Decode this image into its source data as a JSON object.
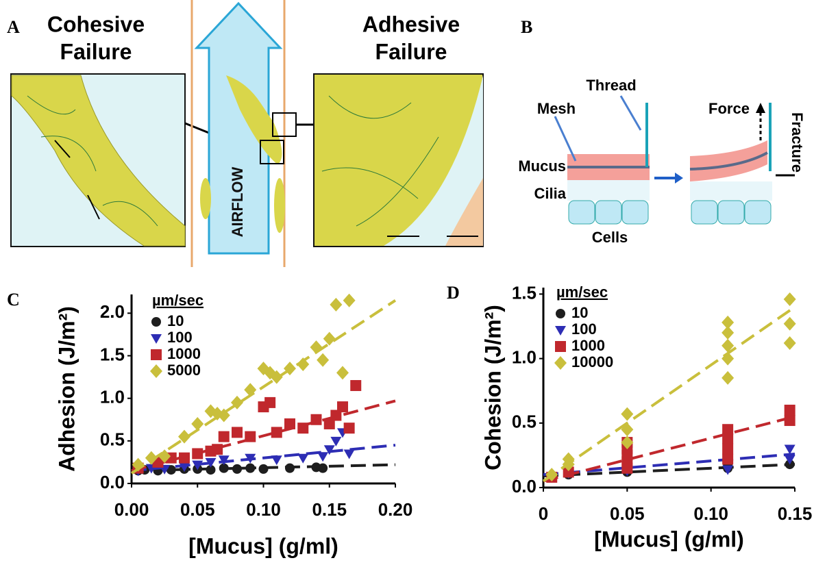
{
  "panels": {
    "A": {
      "label": "A",
      "cohesive": [
        "Cohesive",
        "Failure"
      ],
      "adhesive": [
        "Adhesive",
        "Failure"
      ],
      "airflow": "AIRFLOW"
    },
    "B": {
      "label": "B",
      "thread": "Thread",
      "mesh": "Mesh",
      "mucus": "Mucus",
      "cilia": "Cilia",
      "cells": "Cells",
      "force": "Force",
      "fracture": "Fracture"
    }
  },
  "chart_data": [
    {
      "type": "scatter",
      "panel_label": "C",
      "y_label": "Adhesion (J/m²)",
      "x_label": "[Mucus] (g/ml)",
      "legend_title": "µm/sec",
      "xlim": [
        0,
        0.2
      ],
      "ylim": [
        0,
        2.22
      ],
      "xticks": [
        {
          "value": 0,
          "label": "0.00"
        },
        0.05,
        {
          "value": 0.1,
          "label": "0.10"
        },
        0.15,
        {
          "value": 0.2,
          "label": "0.20"
        }
      ],
      "yticks": [
        {
          "value": 0,
          "label": "0.0"
        },
        0.5,
        {
          "value": 1,
          "label": "1.0"
        },
        1.5,
        {
          "value": 2,
          "label": "2.0"
        }
      ],
      "series": [
        {
          "name": "10",
          "color": "#1e1e1e",
          "marker": "circle",
          "x": [
            0.005,
            0.01,
            0.02,
            0.03,
            0.04,
            0.05,
            0.06,
            0.07,
            0.08,
            0.09,
            0.1,
            0.12,
            0.14,
            0.145
          ],
          "values": [
            0.15,
            0.16,
            0.15,
            0.16,
            0.17,
            0.17,
            0.16,
            0.18,
            0.17,
            0.18,
            0.17,
            0.18,
            0.19,
            0.18
          ],
          "fit": {
            "x": [
              0,
              0.2
            ],
            "y": [
              0.15,
              0.22
            ]
          }
        },
        {
          "name": "100",
          "color": "#2d2db4",
          "marker": "triangle-down",
          "x": [
            0.005,
            0.015,
            0.025,
            0.04,
            0.05,
            0.06,
            0.07,
            0.09,
            0.11,
            0.13,
            0.145,
            0.15,
            0.155,
            0.16,
            0.165
          ],
          "values": [
            0.15,
            0.18,
            0.17,
            0.2,
            0.22,
            0.25,
            0.28,
            0.3,
            0.28,
            0.3,
            0.32,
            0.4,
            0.5,
            0.6,
            0.35
          ],
          "fit": {
            "x": [
              0,
              0.2
            ],
            "y": [
              0.15,
              0.45
            ]
          }
        },
        {
          "name": "1000",
          "color": "#c0282d",
          "marker": "square",
          "x": [
            0.005,
            0.02,
            0.03,
            0.04,
            0.05,
            0.06,
            0.065,
            0.07,
            0.08,
            0.09,
            0.1,
            0.105,
            0.11,
            0.12,
            0.13,
            0.14,
            0.15,
            0.155,
            0.16,
            0.165,
            0.17
          ],
          "values": [
            0.18,
            0.25,
            0.3,
            0.3,
            0.35,
            0.38,
            0.4,
            0.55,
            0.6,
            0.55,
            0.9,
            0.95,
            0.6,
            0.7,
            0.65,
            0.75,
            0.7,
            0.8,
            0.9,
            0.65,
            1.15
          ],
          "fit": {
            "x": [
              0,
              0.2
            ],
            "y": [
              0.15,
              0.97
            ]
          }
        },
        {
          "name": "5000",
          "color": "#c9bf3c",
          "marker": "diamond",
          "x": [
            0.005,
            0.015,
            0.025,
            0.04,
            0.05,
            0.06,
            0.065,
            0.07,
            0.08,
            0.09,
            0.1,
            0.105,
            0.11,
            0.12,
            0.13,
            0.14,
            0.145,
            0.15,
            0.155,
            0.16,
            0.165
          ],
          "values": [
            0.22,
            0.3,
            0.32,
            0.55,
            0.7,
            0.85,
            0.82,
            0.8,
            0.95,
            1.1,
            1.35,
            1.3,
            1.25,
            1.35,
            1.4,
            1.6,
            1.45,
            1.7,
            2.1,
            1.3,
            2.15
          ],
          "fit": {
            "x": [
              0,
              0.2
            ],
            "y": [
              0.12,
              2.15
            ]
          }
        }
      ]
    },
    {
      "type": "scatter",
      "panel_label": "D",
      "y_label": "Cohesion (J/m²)",
      "x_label": "[Mucus] (g/ml)",
      "legend_title": "µm/sec",
      "xlim": [
        0,
        0.15
      ],
      "ylim": [
        0,
        1.55
      ],
      "xticks": [
        0,
        0.05,
        {
          "value": 0.1,
          "label": "0.10"
        },
        0.15
      ],
      "yticks": [
        {
          "value": 0,
          "label": "0.0"
        },
        0.5,
        {
          "value": 1,
          "label": "1.0"
        },
        1.5
      ],
      "series": [
        {
          "name": "10",
          "color": "#1e1e1e",
          "marker": "circle",
          "x": [
            0.005,
            0.015,
            0.05,
            0.05,
            0.11,
            0.11,
            0.147
          ],
          "values": [
            0.08,
            0.1,
            0.12,
            0.15,
            0.15,
            0.18,
            0.18
          ],
          "fit": {
            "x": [
              0,
              0.15
            ],
            "y": [
              0.09,
              0.18
            ]
          }
        },
        {
          "name": "100",
          "color": "#2d2db4",
          "marker": "triangle-down",
          "x": [
            0.005,
            0.015,
            0.05,
            0.05,
            0.05,
            0.11,
            0.11,
            0.147,
            0.147
          ],
          "values": [
            0.09,
            0.11,
            0.13,
            0.18,
            0.2,
            0.14,
            0.22,
            0.22,
            0.3
          ],
          "fit": {
            "x": [
              0,
              0.15
            ],
            "y": [
              0.1,
              0.26
            ]
          }
        },
        {
          "name": "1000",
          "color": "#c0282d",
          "marker": "square",
          "x": [
            0.005,
            0.015,
            0.05,
            0.05,
            0.05,
            0.05,
            0.05,
            0.11,
            0.11,
            0.11,
            0.11,
            0.147,
            0.147
          ],
          "values": [
            0.08,
            0.12,
            0.15,
            0.2,
            0.25,
            0.3,
            0.35,
            0.22,
            0.3,
            0.38,
            0.45,
            0.52,
            0.6
          ],
          "fit": {
            "x": [
              0,
              0.15
            ],
            "y": [
              0.05,
              0.55
            ]
          }
        },
        {
          "name": "10000",
          "color": "#c9bf3c",
          "marker": "diamond",
          "x": [
            0.005,
            0.015,
            0.015,
            0.05,
            0.05,
            0.05,
            0.11,
            0.11,
            0.11,
            0.11,
            0.11,
            0.147,
            0.147,
            0.147
          ],
          "values": [
            0.1,
            0.18,
            0.22,
            0.35,
            0.45,
            0.57,
            0.85,
            1.0,
            1.1,
            1.2,
            1.28,
            1.12,
            1.27,
            1.46
          ],
          "fit": {
            "x": [
              0,
              0.15
            ],
            "y": [
              0.05,
              1.4
            ]
          }
        }
      ]
    }
  ]
}
